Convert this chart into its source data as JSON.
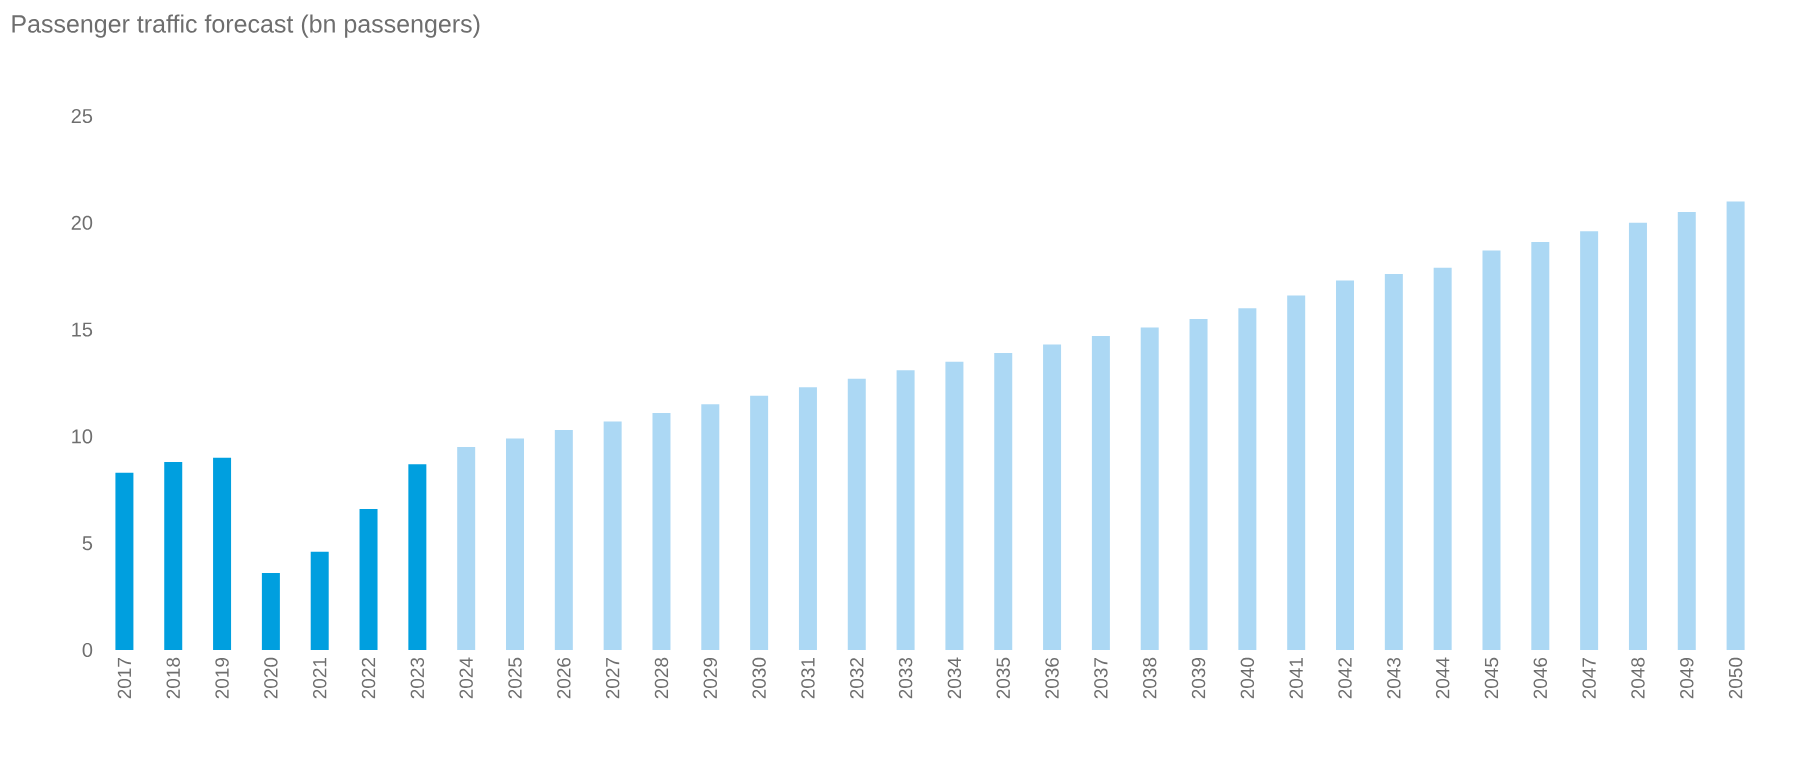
{
  "chart_data": {
    "type": "bar",
    "title": "Passenger traffic forecast (bn passengers)",
    "categories": [
      "2017",
      "2018",
      "2019",
      "2020",
      "2021",
      "2022",
      "2023",
      "2024",
      "2025",
      "2026",
      "2027",
      "2028",
      "2029",
      "2030",
      "2031",
      "2032",
      "2033",
      "2034",
      "2035",
      "2036",
      "2037",
      "2038",
      "2039",
      "2040",
      "2041",
      "2042",
      "2043",
      "2044",
      "2045",
      "2046",
      "2047",
      "2048",
      "2049",
      "2050"
    ],
    "values": [
      8.3,
      8.8,
      9.0,
      3.6,
      4.6,
      6.6,
      8.7,
      9.5,
      9.9,
      10.3,
      10.7,
      11.1,
      11.5,
      11.9,
      12.3,
      12.7,
      13.1,
      13.5,
      13.9,
      14.3,
      14.7,
      15.1,
      15.5,
      16.0,
      16.6,
      17.3,
      17.6,
      17.9,
      18.7,
      19.1,
      19.6,
      20.0,
      20.5,
      21.0
    ],
    "colors": [
      "#009fdf",
      "#009fdf",
      "#009fdf",
      "#009fdf",
      "#009fdf",
      "#009fdf",
      "#009fdf",
      "#acd8f4",
      "#acd8f4",
      "#acd8f4",
      "#acd8f4",
      "#acd8f4",
      "#acd8f4",
      "#acd8f4",
      "#acd8f4",
      "#acd8f4",
      "#acd8f4",
      "#acd8f4",
      "#acd8f4",
      "#acd8f4",
      "#acd8f4",
      "#acd8f4",
      "#acd8f4",
      "#acd8f4",
      "#acd8f4",
      "#acd8f4",
      "#acd8f4",
      "#acd8f4",
      "#acd8f4",
      "#acd8f4",
      "#acd8f4",
      "#acd8f4",
      "#acd8f4",
      "#acd8f4"
    ],
    "ylim": [
      0,
      25
    ],
    "yticks": [
      0,
      5,
      10,
      15,
      20,
      25
    ]
  }
}
